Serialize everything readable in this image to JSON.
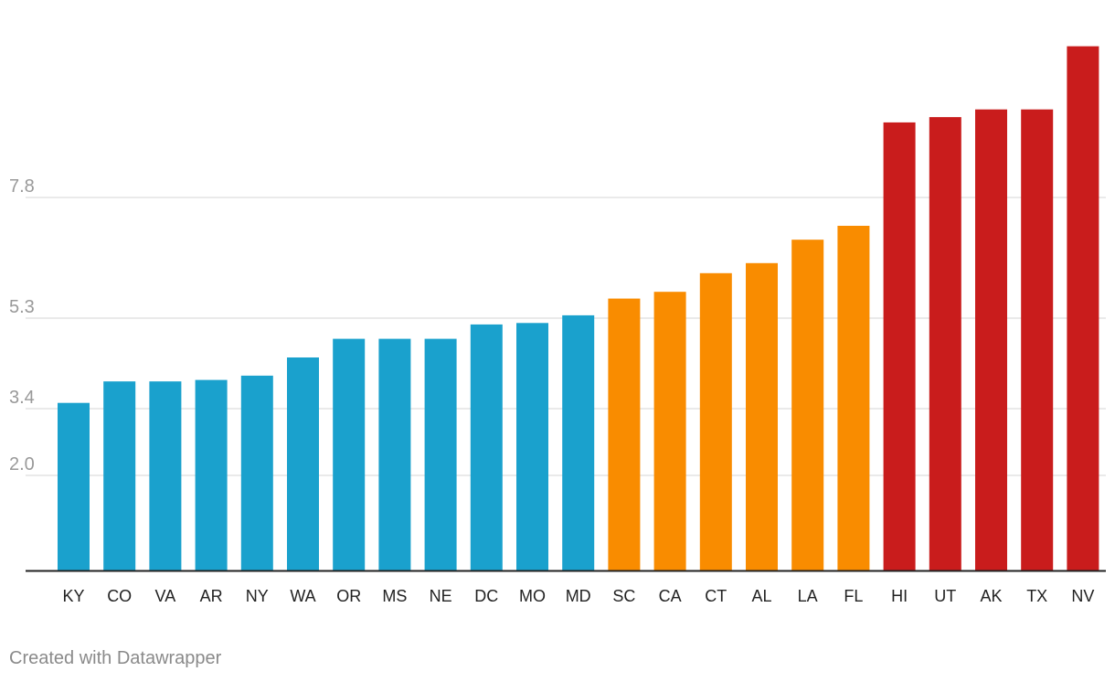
{
  "chart_data": {
    "type": "bar",
    "categories": [
      "KY",
      "CO",
      "VA",
      "AR",
      "NY",
      "WA",
      "OR",
      "MS",
      "NE",
      "DC",
      "MO",
      "MD",
      "SC",
      "CA",
      "CT",
      "AL",
      "LA",
      "FL",
      "HI",
      "UT",
      "AK",
      "TX",
      "NV"
    ],
    "values": [
      3.5,
      3.95,
      3.95,
      3.98,
      4.07,
      4.45,
      4.84,
      4.84,
      4.84,
      5.14,
      5.17,
      5.33,
      5.68,
      5.82,
      6.21,
      6.42,
      6.91,
      7.2,
      9.36,
      9.47,
      9.63,
      9.63,
      10.95
    ],
    "colors": [
      "#1aa1cd",
      "#1aa1cd",
      "#1aa1cd",
      "#1aa1cd",
      "#1aa1cd",
      "#1aa1cd",
      "#1aa1cd",
      "#1aa1cd",
      "#1aa1cd",
      "#1aa1cd",
      "#1aa1cd",
      "#1aa1cd",
      "#f98c00",
      "#f98c00",
      "#f98c00",
      "#f98c00",
      "#f98c00",
      "#f98c00",
      "#c91c1c",
      "#c91c1c",
      "#c91c1c",
      "#c91c1c",
      "#c91c1c"
    ],
    "yticks": [
      "2.0",
      "3.4",
      "5.3",
      "7.8"
    ],
    "ylim": [
      0,
      11
    ],
    "grid": true,
    "title": "",
    "xlabel": "",
    "ylabel": ""
  },
  "footer": {
    "credit": "Created with Datawrapper"
  }
}
